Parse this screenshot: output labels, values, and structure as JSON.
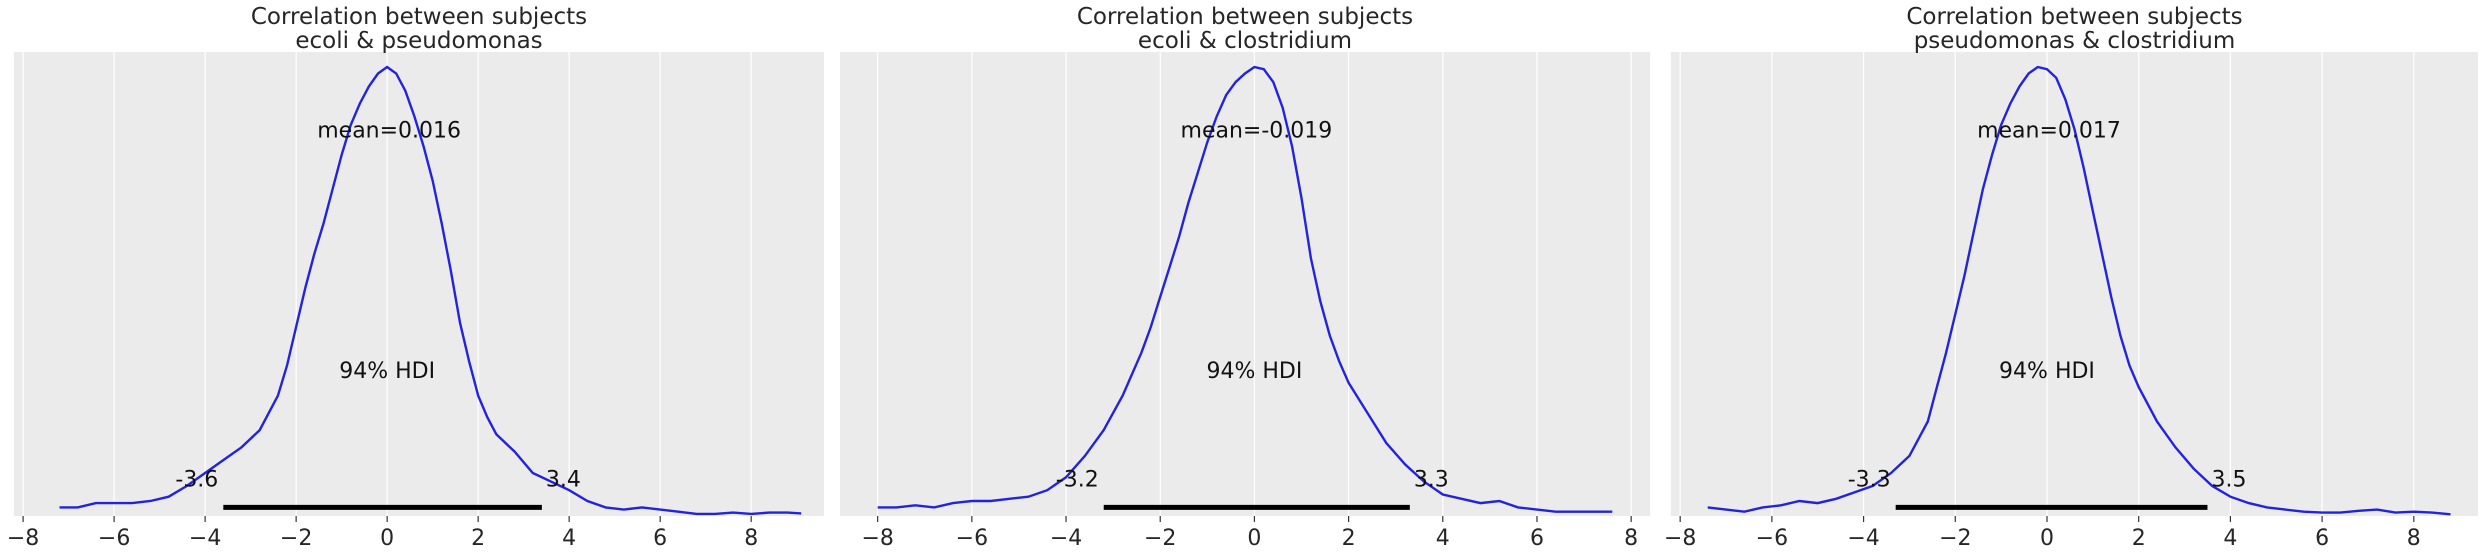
{
  "chart_data": [
    {
      "type": "line",
      "title": [
        "Correlation between subjects",
        "ecoli & pseudomonas"
      ],
      "xlim": [
        -8.2,
        9.6
      ],
      "ylim": [
        0,
        1.08
      ],
      "x_ticks": [
        -8,
        -6,
        -4,
        -2,
        0,
        2,
        4,
        6,
        8
      ],
      "x_tick_labels": [
        "−8",
        "−6",
        "−4",
        "−2",
        "0",
        "2",
        "4",
        "6",
        "8"
      ],
      "grid": true,
      "line_color": "#2323dd",
      "hdi_color": "#000000",
      "series": [
        {
          "x": [
            -7.2,
            -6.8,
            -6.4,
            -6.0,
            -5.6,
            -5.2,
            -4.8,
            -4.4,
            -4.0,
            -3.6,
            -3.2,
            -2.8,
            -2.4,
            -2.2,
            -2.0,
            -1.8,
            -1.6,
            -1.4,
            -1.2,
            -1.0,
            -0.8,
            -0.6,
            -0.4,
            -0.2,
            0.0,
            0.2,
            0.4,
            0.6,
            0.8,
            1.0,
            1.2,
            1.4,
            1.6,
            1.8,
            2.0,
            2.2,
            2.4,
            2.8,
            3.2,
            3.6,
            4.0,
            4.4,
            4.8,
            5.2,
            5.6,
            6.0,
            6.4,
            6.8,
            7.2,
            7.6,
            8.0,
            8.4,
            8.8,
            9.1
          ],
          "y": [
            0.02,
            0.02,
            0.03,
            0.03,
            0.03,
            0.035,
            0.045,
            0.07,
            0.1,
            0.13,
            0.16,
            0.2,
            0.28,
            0.35,
            0.44,
            0.53,
            0.61,
            0.68,
            0.76,
            0.84,
            0.91,
            0.96,
            1.0,
            1.03,
            1.045,
            1.03,
            0.99,
            0.93,
            0.86,
            0.78,
            0.68,
            0.57,
            0.45,
            0.36,
            0.28,
            0.23,
            0.19,
            0.15,
            0.1,
            0.08,
            0.06,
            0.035,
            0.02,
            0.015,
            0.02,
            0.015,
            0.01,
            0.005,
            0.005,
            0.008,
            0.005,
            0.008,
            0.008,
            0.006
          ]
        }
      ],
      "mean_label": "mean=0.016",
      "mean_label_pos": [
        0.0,
        0.9
      ],
      "hdi_label": "94% HDI",
      "hdi_label_pos": [
        0.0,
        0.34
      ],
      "hdi": [
        -3.6,
        3.4
      ],
      "hdi_low_label": "-3.6",
      "hdi_high_label": "3.4"
    },
    {
      "type": "line",
      "title": [
        "Correlation between subjects",
        "ecoli & clostridium"
      ],
      "xlim": [
        -8.8,
        8.4
      ],
      "ylim": [
        0,
        1.08
      ],
      "x_ticks": [
        -8,
        -6,
        -4,
        -2,
        0,
        2,
        4,
        6,
        8
      ],
      "x_tick_labels": [
        "−8",
        "−6",
        "−4",
        "−2",
        "0",
        "2",
        "4",
        "6",
        "8"
      ],
      "grid": true,
      "line_color": "#2323dd",
      "hdi_color": "#000000",
      "series": [
        {
          "x": [
            -8.0,
            -7.6,
            -7.2,
            -6.8,
            -6.4,
            -6.0,
            -5.6,
            -5.2,
            -4.8,
            -4.4,
            -4.0,
            -3.6,
            -3.2,
            -2.8,
            -2.4,
            -2.2,
            -2.0,
            -1.8,
            -1.6,
            -1.4,
            -1.2,
            -1.0,
            -0.8,
            -0.6,
            -0.4,
            -0.2,
            0.0,
            0.2,
            0.4,
            0.6,
            0.8,
            1.0,
            1.2,
            1.4,
            1.6,
            1.8,
            2.0,
            2.4,
            2.8,
            3.2,
            3.6,
            4.0,
            4.4,
            4.8,
            5.2,
            5.6,
            6.0,
            6.4,
            6.8,
            7.2,
            7.6
          ],
          "y": [
            0.02,
            0.02,
            0.025,
            0.02,
            0.03,
            0.035,
            0.035,
            0.04,
            0.045,
            0.06,
            0.09,
            0.14,
            0.2,
            0.28,
            0.38,
            0.44,
            0.51,
            0.58,
            0.65,
            0.73,
            0.8,
            0.87,
            0.93,
            0.98,
            1.01,
            1.03,
            1.045,
            1.04,
            1.01,
            0.95,
            0.86,
            0.74,
            0.6,
            0.5,
            0.42,
            0.36,
            0.31,
            0.24,
            0.17,
            0.12,
            0.08,
            0.05,
            0.04,
            0.03,
            0.035,
            0.02,
            0.015,
            0.01,
            0.01,
            0.01,
            0.01
          ]
        }
      ],
      "mean_label": "mean=-0.019",
      "mean_label_pos": [
        0.0,
        0.9
      ],
      "hdi_label": "94% HDI",
      "hdi_label_pos": [
        0.0,
        0.34
      ],
      "hdi": [
        -3.2,
        3.3
      ],
      "hdi_low_label": "-3.2",
      "hdi_high_label": "3.3"
    },
    {
      "type": "line",
      "title": [
        "Correlation between subjects",
        "pseudomonas & clostridium"
      ],
      "xlim": [
        -8.2,
        9.4
      ],
      "ylim": [
        0,
        1.08
      ],
      "x_ticks": [
        -8,
        -6,
        -4,
        -2,
        0,
        2,
        4,
        6,
        8
      ],
      "x_tick_labels": [
        "−8",
        "−6",
        "−4",
        "−2",
        "0",
        "2",
        "4",
        "6",
        "8"
      ],
      "grid": true,
      "line_color": "#2323dd",
      "hdi_color": "#000000",
      "series": [
        {
          "x": [
            -7.4,
            -7.0,
            -6.6,
            -6.2,
            -5.8,
            -5.4,
            -5.0,
            -4.6,
            -4.2,
            -3.8,
            -3.4,
            -3.0,
            -2.6,
            -2.4,
            -2.2,
            -2.0,
            -1.8,
            -1.6,
            -1.4,
            -1.2,
            -1.0,
            -0.8,
            -0.6,
            -0.4,
            -0.2,
            0.0,
            0.2,
            0.4,
            0.6,
            0.8,
            1.0,
            1.2,
            1.4,
            1.6,
            1.8,
            2.0,
            2.4,
            2.8,
            3.2,
            3.6,
            4.0,
            4.4,
            4.8,
            5.2,
            5.6,
            6.0,
            6.4,
            6.8,
            7.2,
            7.6,
            8.0,
            8.4,
            8.8
          ],
          "y": [
            0.02,
            0.015,
            0.01,
            0.02,
            0.025,
            0.035,
            0.03,
            0.04,
            0.055,
            0.07,
            0.1,
            0.14,
            0.22,
            0.3,
            0.38,
            0.47,
            0.56,
            0.66,
            0.76,
            0.84,
            0.91,
            0.96,
            1.0,
            1.03,
            1.045,
            1.04,
            1.02,
            0.97,
            0.9,
            0.81,
            0.71,
            0.61,
            0.51,
            0.42,
            0.35,
            0.3,
            0.22,
            0.16,
            0.11,
            0.07,
            0.045,
            0.03,
            0.02,
            0.015,
            0.01,
            0.008,
            0.008,
            0.012,
            0.015,
            0.008,
            0.01,
            0.008,
            0.004
          ]
        }
      ],
      "mean_label": "mean=0.017",
      "mean_label_pos": [
        0.0,
        0.9
      ],
      "hdi_label": "94% HDI",
      "hdi_label_pos": [
        0.0,
        0.34
      ],
      "hdi": [
        -3.3,
        3.5
      ],
      "hdi_low_label": "-3.3",
      "hdi_high_label": "3.5"
    }
  ]
}
